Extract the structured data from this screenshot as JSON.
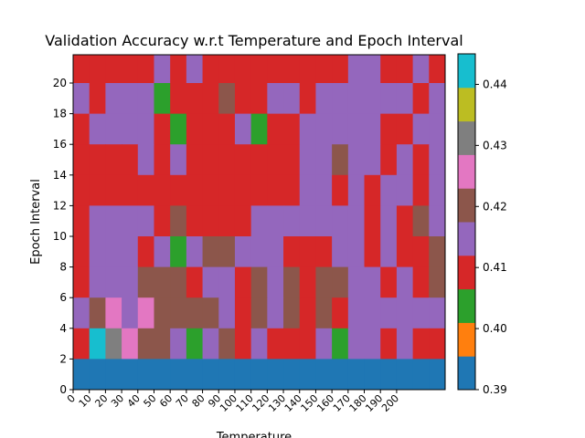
{
  "chart_data": {
    "type": "heatmap",
    "title": "Validation Accuracy w.r.t Temperature and Epoch Interval",
    "xlabel": "Temperature",
    "ylabel": "Epoch Interval",
    "x_ticks": [
      "0",
      "10",
      "20",
      "30",
      "40",
      "50",
      "60",
      "70",
      "80",
      "90",
      "100",
      "110",
      "120",
      "130",
      "140",
      "150",
      "160",
      "170",
      "180",
      "190",
      "200"
    ],
    "y_ticks": [
      "0",
      "2",
      "4",
      "6",
      "8",
      "10",
      "12",
      "14",
      "16",
      "18",
      "20"
    ],
    "colorbar": {
      "vmin": 0.39,
      "vmax": 0.445,
      "ticks": [
        "0.39",
        "0.40",
        "0.41",
        "0.42",
        "0.43",
        "0.44"
      ],
      "colors": [
        "#1f77b4",
        "#ff7f0e",
        "#2ca02c",
        "#d62728",
        "#9467bd",
        "#8c564b",
        "#e377c2",
        "#7f7f7f",
        "#bcbd22",
        "#17becf"
      ]
    },
    "row_order": "top-to-bottom",
    "color_code_legend": "0=blue(0.390), 2=green(0.401), 3=red(0.407), 4=purple(0.413), 5=brown(0.418), 6=pink(0.424), 7=gray(0.429), 9=cyan(0.440)",
    "grid_codes": [
      [
        3,
        3,
        3,
        3,
        3,
        4,
        3,
        4,
        3,
        3,
        3,
        3,
        3,
        3,
        3,
        3,
        3,
        4,
        4,
        3,
        3,
        4,
        3
      ],
      [
        4,
        3,
        4,
        4,
        4,
        2,
        3,
        3,
        3,
        5,
        3,
        3,
        4,
        4,
        3,
        4,
        4,
        4,
        4,
        4,
        4,
        3,
        4
      ],
      [
        3,
        4,
        4,
        4,
        4,
        3,
        2,
        3,
        3,
        3,
        4,
        2,
        3,
        3,
        4,
        4,
        4,
        4,
        4,
        3,
        3,
        4,
        4
      ],
      [
        3,
        3,
        3,
        3,
        4,
        3,
        4,
        3,
        3,
        3,
        3,
        3,
        3,
        3,
        4,
        4,
        5,
        4,
        4,
        3,
        4,
        3,
        4
      ],
      [
        3,
        3,
        3,
        3,
        3,
        3,
        3,
        3,
        3,
        3,
        3,
        3,
        3,
        3,
        4,
        4,
        3,
        4,
        3,
        4,
        4,
        3,
        4
      ],
      [
        3,
        4,
        4,
        4,
        4,
        3,
        5,
        3,
        3,
        3,
        3,
        4,
        4,
        4,
        4,
        4,
        4,
        4,
        3,
        4,
        3,
        5,
        4
      ],
      [
        3,
        4,
        4,
        4,
        3,
        4,
        2,
        4,
        5,
        5,
        4,
        4,
        4,
        3,
        3,
        3,
        4,
        4,
        3,
        4,
        3,
        3,
        5
      ],
      [
        3,
        4,
        4,
        4,
        5,
        5,
        5,
        3,
        4,
        4,
        3,
        5,
        4,
        5,
        3,
        5,
        5,
        4,
        4,
        3,
        4,
        3,
        5
      ],
      [
        4,
        5,
        6,
        4,
        6,
        5,
        5,
        5,
        5,
        4,
        3,
        5,
        4,
        5,
        3,
        5,
        3,
        4,
        4,
        4,
        4,
        4,
        4
      ],
      [
        3,
        9,
        7,
        6,
        5,
        5,
        4,
        2,
        4,
        5,
        3,
        4,
        3,
        3,
        3,
        4,
        2,
        4,
        4,
        3,
        4,
        3,
        3
      ],
      [
        0,
        0,
        0,
        0,
        0,
        0,
        0,
        0,
        0,
        0,
        0,
        0,
        0,
        0,
        0,
        0,
        0,
        0,
        0,
        0,
        0,
        0,
        0
      ]
    ]
  }
}
